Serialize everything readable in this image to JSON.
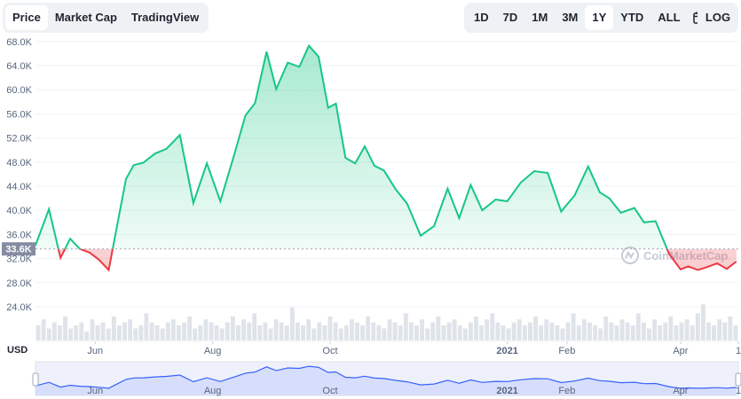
{
  "tabs": [
    {
      "label": "Price",
      "active": true
    },
    {
      "label": "Market Cap",
      "active": false
    },
    {
      "label": "TradingView",
      "active": false
    }
  ],
  "ranges": [
    {
      "label": "1D",
      "active": false
    },
    {
      "label": "7D",
      "active": false
    },
    {
      "label": "1M",
      "active": false
    },
    {
      "label": "3M",
      "active": false
    },
    {
      "label": "1Y",
      "active": true
    },
    {
      "label": "YTD",
      "active": false
    },
    {
      "label": "ALL",
      "active": false
    }
  ],
  "log_label": "LOG",
  "currency_label": "USD",
  "watermark": "CoinMarketCap",
  "current_price_label": "33.6K",
  "colors": {
    "up": "#16c784",
    "down": "#ea3943",
    "axis": "#58667e",
    "navigator": "#3861fb"
  },
  "chart_data": {
    "type": "area",
    "title": "",
    "ylim": [
      24000,
      69000
    ],
    "reference_price": 33600,
    "y_ticks": [
      "24.0K",
      "28.0K",
      "32.0K",
      "36.0K",
      "40.0K",
      "44.0K",
      "48.0K",
      "52.0K",
      "56.0K",
      "60.0K",
      "64.0K",
      "68.0K"
    ],
    "x_ticks": [
      {
        "label": "Jun",
        "x": "2020-06-01",
        "bold": false
      },
      {
        "label": "Aug",
        "x": "2020-08-01",
        "bold": false
      },
      {
        "label": "Oct",
        "x": "2020-10-01",
        "bold": false
      },
      {
        "label": "2021",
        "x": "2021-01-01",
        "bold": true
      },
      {
        "label": "Feb",
        "x": "2021-02-01",
        "bold": false
      },
      {
        "label": "Apr",
        "x": "2021-04-01",
        "bold": false
      },
      {
        "label": "1",
        "x": "2021-05-01",
        "bold": false
      }
    ],
    "series": [
      {
        "x": [
          "2020-05-01",
          "2020-05-08",
          "2020-05-14",
          "2020-05-19",
          "2020-05-24",
          "2020-05-29",
          "2020-06-03",
          "2020-06-08",
          "2020-06-13",
          "2020-06-17",
          "2020-06-21",
          "2020-06-26",
          "2020-07-02",
          "2020-07-08",
          "2020-07-15",
          "2020-07-22",
          "2020-07-29",
          "2020-08-05",
          "2020-08-12",
          "2020-08-18",
          "2020-08-23",
          "2020-08-29",
          "2020-09-03",
          "2020-09-09",
          "2020-09-15",
          "2020-09-20",
          "2020-09-25",
          "2020-09-30",
          "2020-10-04",
          "2020-10-09",
          "2020-10-14",
          "2020-10-19",
          "2020-10-24",
          "2020-10-29",
          "2020-11-04",
          "2020-11-10",
          "2020-11-17",
          "2020-11-24",
          "2020-12-01",
          "2020-12-07",
          "2020-12-13",
          "2020-12-19",
          "2020-12-26",
          "2021-01-01",
          "2021-01-08",
          "2021-01-15",
          "2021-01-22",
          "2021-01-29",
          "2021-02-05",
          "2021-02-12",
          "2021-02-18",
          "2021-02-23",
          "2021-03-01",
          "2021-03-08",
          "2021-03-13",
          "2021-03-19",
          "2021-03-26",
          "2021-04-01",
          "2021-04-05",
          "2021-04-10",
          "2021-04-15",
          "2021-04-20",
          "2021-04-25",
          "2021-04-30"
        ],
        "y": [
          34200,
          40200,
          32100,
          35300,
          33600,
          33000,
          31800,
          30100,
          38500,
          45200,
          47500,
          47900,
          49400,
          50200,
          52500,
          41200,
          47800,
          41500,
          49000,
          55700,
          57800,
          66300,
          60100,
          64500,
          63800,
          67300,
          65500,
          57000,
          57700,
          48700,
          47800,
          50600,
          47400,
          46600,
          43500,
          41100,
          35800,
          37400,
          43600,
          38700,
          44200,
          40000,
          41800,
          41500,
          44600,
          46500,
          46200,
          39800,
          42500,
          47300,
          43000,
          42000,
          39600,
          40400,
          38000,
          38200,
          32800,
          30200,
          30700,
          30100,
          30600,
          31200,
          30300,
          31500
        ]
      }
    ],
    "volume": [
      5,
      7,
      4,
      6,
      5,
      8,
      4,
      5,
      6,
      3,
      7,
      5,
      6,
      4,
      8,
      5,
      6,
      7,
      4,
      5,
      9,
      6,
      5,
      4,
      6,
      7,
      5,
      6,
      8,
      4,
      5,
      7,
      6,
      5,
      4,
      6,
      8,
      5,
      7,
      6,
      9,
      5,
      6,
      4,
      7,
      6,
      5,
      11,
      6,
      5,
      7,
      4,
      6,
      5,
      8,
      6,
      4,
      5,
      7,
      6,
      5,
      8,
      6,
      5,
      4,
      7,
      6,
      5,
      9,
      6,
      5,
      7,
      4,
      6,
      8,
      5,
      6,
      7,
      5,
      4,
      6,
      8,
      5,
      7,
      9,
      6,
      5,
      4,
      6,
      7,
      5,
      6,
      8,
      5,
      7,
      6,
      5,
      4,
      6,
      9,
      5,
      7,
      6,
      5,
      4,
      8,
      6,
      5,
      7,
      6,
      5,
      9,
      6,
      4,
      7,
      5,
      6,
      8,
      5,
      6,
      7,
      5,
      9,
      12,
      6,
      5,
      7,
      6,
      8,
      5
    ]
  }
}
